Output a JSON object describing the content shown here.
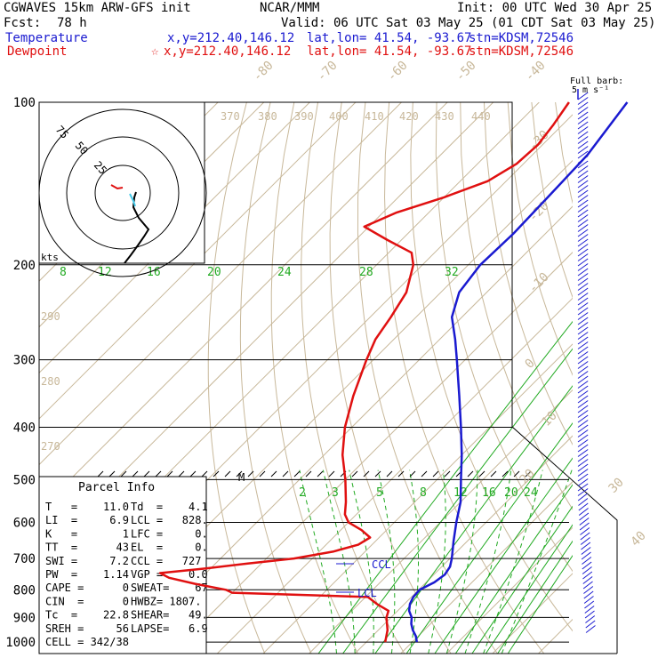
{
  "header": {
    "model": "CGWAVES 15km ARW-GFS init",
    "org": "NCAR/MMM",
    "init": "Init: 00 UTC Wed 30 Apr 25",
    "fcst_label": "Fcst:",
    "fcst_value": "78 h",
    "valid": "Valid: 06 UTC Sat 03 May 25 (01 CDT Sat 03 May 25)",
    "temp_label": "Temperature",
    "temp_xy": "x,y=212.40,146.12",
    "temp_latlon": "lat,lon= 41.54, -93.67",
    "temp_stn": "stn=KDSM,72546",
    "dew_label": "Dewpoint",
    "dew_xy": "x,y=212.40,146.12",
    "dew_latlon": "lat,lon= 41.54, -93.67",
    "dew_stn": "stn=KDSM,72546",
    "barb_label_1": "Full barb:",
    "barb_label_2": "5 m s⁻¹"
  },
  "colors": {
    "temperature": "#1a1ad0",
    "dewpoint": "#e01010",
    "isotherm": "#c8b89a",
    "mixing_ratio": "#22aa22",
    "grid": "#000000"
  },
  "hodograph": {
    "unit_label": "kts",
    "ring_labels": [
      "75",
      "50",
      "25"
    ]
  },
  "parcel_info": {
    "title": "Parcel Info",
    "rows": [
      [
        "T   =    11.0",
        "Td  =    4.1"
      ],
      [
        "LI  =     6.9",
        "LCL =   828."
      ],
      [
        "K   =       1",
        "LFC =     0."
      ],
      [
        "TT  =      43",
        "EL  =     0."
      ],
      [
        "SWI =     7.2",
        "CCL =   727"
      ],
      [
        "PW  =    1.14",
        "VGP =    0.0"
      ],
      [
        "CAPE =      0",
        "SWEAT=    67"
      ],
      [
        "CIN  =      0",
        "HWBZ= 1807."
      ],
      [
        "Tc  =    22.8",
        "SHEAR=   49."
      ],
      [
        "SREH =     56",
        "LAPSE=   6.9"
      ],
      [
        "CELL = 342/38",
        ""
      ]
    ]
  },
  "chart_data": {
    "type": "line",
    "title": "",
    "ylabel": "",
    "xlabel": "",
    "y_scale": "log-pressure (hPa)",
    "pressure_ticks": [
      "100",
      "200",
      "300",
      "400",
      "500",
      "600",
      "700",
      "800",
      "900",
      "1000"
    ],
    "isotherm_labels": [
      "-80",
      "-70",
      "-60",
      "-50",
      "-40",
      "-30",
      "-20",
      "-10",
      "0",
      "10",
      "20",
      "30",
      "40"
    ],
    "theta_labels": [
      "370",
      "380",
      "390",
      "400",
      "410",
      "420",
      "430",
      "440",
      "290",
      "280",
      "270"
    ],
    "mixing_ratio_labels_upper": [
      "8",
      "12",
      "16",
      "20",
      "24",
      "28",
      "32"
    ],
    "mixing_ratio_labels_lower": [
      "2",
      "3",
      "5",
      "8",
      "12",
      "16",
      "20",
      "24"
    ],
    "annotations": [
      "CCL",
      "LCL",
      "M"
    ],
    "series": [
      {
        "name": "Temperature",
        "points": [
          [
            1000,
            11.0
          ],
          [
            975,
            9.5
          ],
          [
            950,
            7.5
          ],
          [
            925,
            5.8
          ],
          [
            900,
            4.5
          ],
          [
            875,
            2.5
          ],
          [
            850,
            1.2
          ],
          [
            825,
            0.4
          ],
          [
            800,
            0.2
          ],
          [
            775,
            1.8
          ],
          [
            750,
            2.4
          ],
          [
            725,
            1.8
          ],
          [
            700,
            0.4
          ],
          [
            650,
            -3.0
          ],
          [
            600,
            -6.5
          ],
          [
            550,
            -10.0
          ],
          [
            500,
            -14.8
          ],
          [
            450,
            -20.0
          ],
          [
            400,
            -26.2
          ],
          [
            350,
            -33.4
          ],
          [
            300,
            -41.8
          ],
          [
            275,
            -46.6
          ],
          [
            250,
            -52.2
          ],
          [
            225,
            -56.0
          ],
          [
            200,
            -57.4
          ],
          [
            175,
            -57.0
          ],
          [
            150,
            -57.4
          ],
          [
            125,
            -58.0
          ],
          [
            100,
            -60.8
          ]
        ]
      },
      {
        "name": "Dewpoint",
        "points": [
          [
            1000,
            4.1
          ],
          [
            950,
            2.0
          ],
          [
            900,
            -1.0
          ],
          [
            875,
            -2.0
          ],
          [
            850,
            -6.0
          ],
          [
            825,
            -9.5
          ],
          [
            810,
            -40.0
          ],
          [
            800,
            -42.0
          ],
          [
            780,
            -50.0
          ],
          [
            760,
            -57.0
          ],
          [
            745,
            -60.0
          ],
          [
            730,
            -51.0
          ],
          [
            715,
            -43.0
          ],
          [
            700,
            -34.0
          ],
          [
            680,
            -27.0
          ],
          [
            660,
            -23.0
          ],
          [
            640,
            -22.0
          ],
          [
            620,
            -25.5
          ],
          [
            600,
            -30.0
          ],
          [
            580,
            -32.5
          ],
          [
            550,
            -35.0
          ],
          [
            500,
            -40.0
          ],
          [
            450,
            -46.0
          ],
          [
            400,
            -51.5
          ],
          [
            350,
            -56.5
          ],
          [
            300,
            -61.5
          ],
          [
            275,
            -64.0
          ],
          [
            250,
            -65.5
          ],
          [
            225,
            -67.5
          ],
          [
            200,
            -72.0
          ],
          [
            190,
            -75.0
          ],
          [
            180,
            -83.0
          ],
          [
            170,
            -91.0
          ],
          [
            160,
            -87.0
          ],
          [
            150,
            -80.0
          ],
          [
            140,
            -74.0
          ],
          [
            130,
            -71.5
          ],
          [
            120,
            -71.0
          ],
          [
            110,
            -72.0
          ],
          [
            100,
            -73.5
          ]
        ]
      }
    ]
  }
}
